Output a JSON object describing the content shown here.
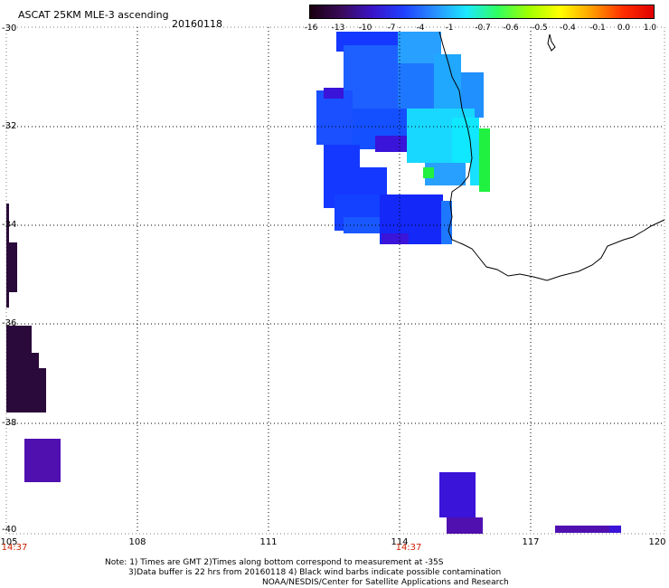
{
  "title": "ASCAT 25KM MLE-3 ascending",
  "date": "20160118",
  "colorbar": {
    "labels": [
      "-16",
      "-13",
      "-10",
      "-7",
      "-4",
      "-1",
      "-0.7",
      "-0.6",
      "-0.5",
      "-0.4",
      "-0.1",
      "0.0",
      "1.0"
    ],
    "gradient_colors": [
      "#1a0010",
      "#3a0a5a",
      "#3a14c8",
      "#2040ff",
      "#2890ff",
      "#1ce8ff",
      "#30ff60",
      "#a0ff00",
      "#ffff00",
      "#ffa000",
      "#ff3000",
      "#e00000"
    ]
  },
  "axes": {
    "y_labels": [
      "-30",
      "-32",
      "-34",
      "-36",
      "-38",
      "-40"
    ],
    "x_labels": [
      "105",
      "108",
      "111",
      "114",
      "117",
      "120"
    ],
    "time_labels": [
      "14:37",
      "14:37"
    ]
  },
  "notes": {
    "line1": "Note: 1) Times are GMT 2)Times along bottom correspond to measurement at -35S",
    "line2": "3)Data buffer is 22 hrs from 20160118 4) Black wind barbs indicate possible contamination",
    "line3": "NOAA/NESDIS/Center for Satellite Applications and Research"
  },
  "colors": {
    "deep_purple": "#2a0a3a",
    "violet": "#5010b0",
    "indigo": "#3a14d8",
    "blue": "#1438ff",
    "mid_blue": "#2070ff",
    "light_blue": "#28a0ff",
    "cyan": "#18e0ff",
    "green": "#20f040",
    "coast": "#000000"
  }
}
